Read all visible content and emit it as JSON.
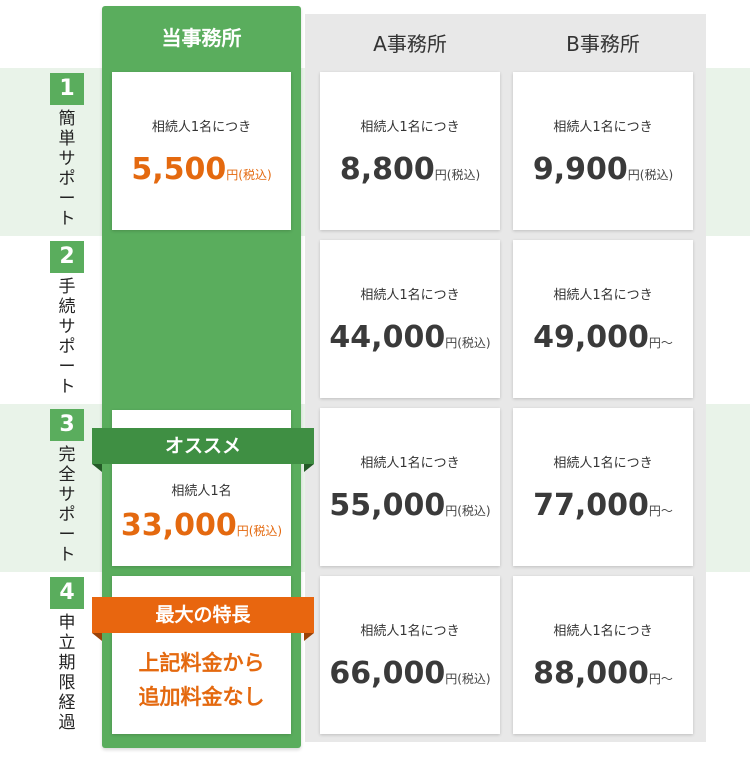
{
  "headers": {
    "ours": "当事務所",
    "a": "A事務所",
    "b": "B事務所"
  },
  "rows": [
    {
      "number": "1",
      "title": "簡単サポート",
      "ours": {
        "label": "相続人1名につき",
        "num": "5,500",
        "unit": "円(税込)"
      },
      "a": {
        "label": "相続人1名につき",
        "num": "8,800",
        "unit": "円(税込)"
      },
      "b": {
        "label": "相続人1名につき",
        "num": "9,900",
        "unit": "円(税込)"
      }
    },
    {
      "number": "2",
      "title": "手続サポート",
      "a": {
        "label": "相続人1名につき",
        "num": "44,000",
        "unit": "円(税込)"
      },
      "b": {
        "label": "相続人1名につき",
        "num": "49,000",
        "unit": "円〜"
      }
    },
    {
      "number": "3",
      "title": "完全サポート",
      "ribbon": "オススメ",
      "ours": {
        "label": "相続人1名",
        "num": "33,000",
        "unit": "円(税込)"
      },
      "a": {
        "label": "相続人1名につき",
        "num": "55,000",
        "unit": "円(税込)"
      },
      "b": {
        "label": "相続人1名につき",
        "num": "77,000",
        "unit": "円〜"
      }
    },
    {
      "number": "4",
      "title": "申立期限経過",
      "ribbon": "最大の特長",
      "ours_text": [
        "上記料金から",
        "追加料金なし"
      ],
      "a": {
        "label": "相続人1名につき",
        "num": "66,000",
        "unit": "円(税込)"
      },
      "b": {
        "label": "相続人1名につき",
        "num": "88,000",
        "unit": "円〜"
      }
    }
  ],
  "colors": {
    "green": "#5aad5d",
    "dark_green": "#3f8f43",
    "orange": "#e8660f",
    "price_orange": "#e4690f",
    "band": "#e9f3e9",
    "gray_column": "#e8e8e8"
  }
}
